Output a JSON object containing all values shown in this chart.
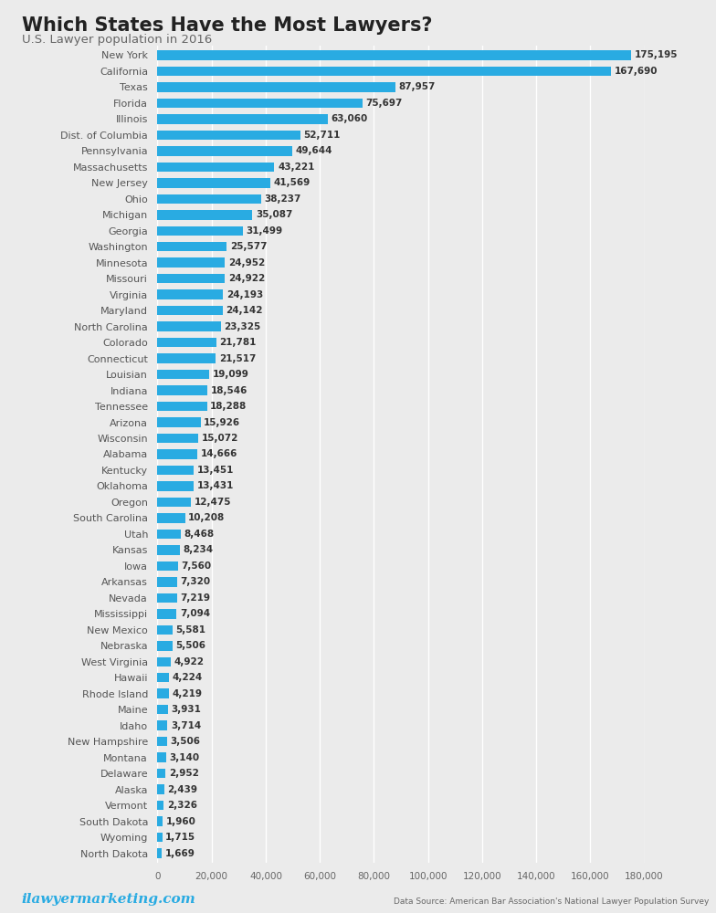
{
  "title": "Which States Have the Most Lawyers?",
  "subtitle": "U.S. Lawyer population in 2016",
  "states": [
    "New York",
    "California",
    "Texas",
    "Florida",
    "Illinois",
    "Dist. of Columbia",
    "Pennsylvania",
    "Massachusetts",
    "New Jersey",
    "Ohio",
    "Michigan",
    "Georgia",
    "Washington",
    "Minnesota",
    "Missouri",
    "Virginia",
    "Maryland",
    "North Carolina",
    "Colorado",
    "Connecticut",
    "Louisian",
    "Indiana",
    "Tennessee",
    "Arizona",
    "Wisconsin",
    "Alabama",
    "Kentucky",
    "Oklahoma",
    "Oregon",
    "South Carolina",
    "Utah",
    "Kansas",
    "Iowa",
    "Arkansas",
    "Nevada",
    "Mississippi",
    "New Mexico",
    "Nebraska",
    "West Virginia",
    "Hawaii",
    "Rhode Island",
    "Maine",
    "Idaho",
    "New Hampshire",
    "Montana",
    "Delaware",
    "Alaska",
    "Vermont",
    "South Dakota",
    "Wyoming",
    "North Dakota"
  ],
  "values": [
    175195,
    167690,
    87957,
    75697,
    63060,
    52711,
    49644,
    43221,
    41569,
    38237,
    35087,
    31499,
    25577,
    24952,
    24922,
    24193,
    24142,
    23325,
    21781,
    21517,
    19099,
    18546,
    18288,
    15926,
    15072,
    14666,
    13451,
    13431,
    12475,
    10208,
    8468,
    8234,
    7560,
    7320,
    7219,
    7094,
    5581,
    5506,
    4922,
    4224,
    4219,
    3931,
    3714,
    3506,
    3140,
    2952,
    2439,
    2326,
    1960,
    1715,
    1669
  ],
  "bar_color": "#29ABE2",
  "label_color_value": "#333333",
  "label_color_state": "#555555",
  "background_color": "#ebebeb",
  "title_color": "#222222",
  "subtitle_color": "#666666",
  "watermark_color": "#29ABE2",
  "source_color": "#666666",
  "xlim": [
    0,
    180000
  ],
  "xticks": [
    0,
    20000,
    40000,
    60000,
    80000,
    100000,
    120000,
    140000,
    160000,
    180000
  ],
  "xtick_labels": [
    "0",
    "20,000",
    "40,000",
    "60,000",
    "80,000",
    "100,000",
    "120,000",
    "140,000",
    "160,000",
    "180,000"
  ],
  "watermark_text": "ilawyermarketing.com",
  "source_text": "Data Source: American Bar Association's National Lawyer Population Survey"
}
